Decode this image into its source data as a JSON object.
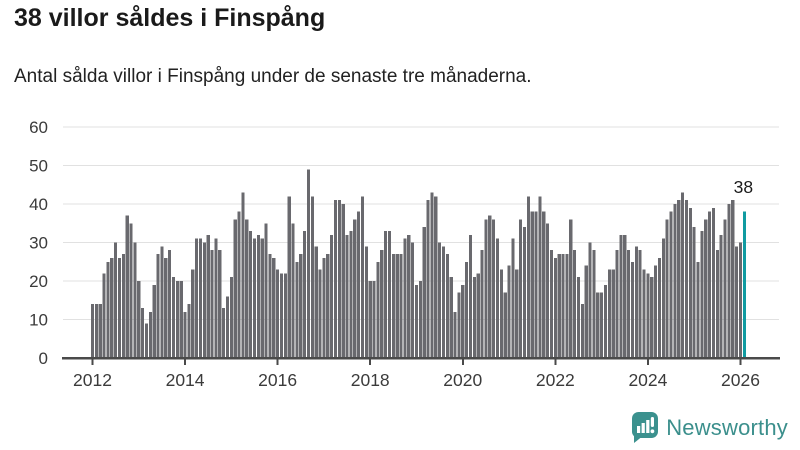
{
  "header": {
    "title": "38 villor såldes i Finspång",
    "subtitle": "Antal sålda villor i Finspång under de senaste tre månaderna."
  },
  "chart_data": {
    "type": "bar",
    "frequency": "monthly",
    "x_start": "2012-01",
    "x_end": "2026-02",
    "x_tick_labels": [
      "2012",
      "2014",
      "2016",
      "2018",
      "2020",
      "2022",
      "2024",
      "2026"
    ],
    "y_ticks": [
      0,
      10,
      20,
      30,
      40,
      50,
      60
    ],
    "ylim": [
      0,
      60
    ],
    "grid": true,
    "values": [
      14,
      14,
      14,
      22,
      25,
      26,
      30,
      26,
      27,
      37,
      35,
      30,
      20,
      13,
      9,
      12,
      19,
      27,
      29,
      26,
      28,
      21,
      20,
      20,
      12,
      14,
      23,
      31,
      31,
      30,
      32,
      28,
      31,
      28,
      13,
      16,
      21,
      36,
      38,
      43,
      36,
      33,
      31,
      32,
      31,
      35,
      27,
      26,
      23,
      22,
      22,
      42,
      35,
      25,
      27,
      33,
      49,
      42,
      29,
      23,
      26,
      27,
      32,
      41,
      41,
      40,
      32,
      33,
      36,
      38,
      42,
      29,
      20,
      20,
      25,
      28,
      33,
      33,
      27,
      27,
      27,
      31,
      32,
      30,
      19,
      20,
      34,
      41,
      43,
      42,
      30,
      29,
      27,
      21,
      12,
      17,
      19,
      25,
      32,
      21,
      22,
      28,
      36,
      37,
      36,
      31,
      23,
      17,
      24,
      31,
      23,
      36,
      34,
      42,
      38,
      38,
      42,
      38,
      35,
      28,
      26,
      27,
      27,
      27,
      36,
      28,
      21,
      14,
      24,
      30,
      28,
      17,
      17,
      19,
      23,
      23,
      28,
      32,
      32,
      28,
      25,
      29,
      28,
      23,
      22,
      21,
      24,
      26,
      31,
      36,
      38,
      40,
      41,
      43,
      41,
      39,
      34,
      25,
      33,
      36,
      38,
      39,
      28,
      32,
      36,
      40,
      41,
      29,
      30,
      38
    ],
    "highlight_last": true,
    "last_value_label": "38",
    "colors": {
      "bar": "#69696e",
      "highlight": "#109ba1",
      "grid": "#e1e1e1",
      "axis": "#4a4a4a",
      "tick_text": "#3b3b3b",
      "annotation_text": "#1a1a1a"
    }
  },
  "logo": {
    "text": "Newsworthy",
    "icon": "newsworthy-bubble-chart-icon",
    "color": "#3b8f8c"
  }
}
